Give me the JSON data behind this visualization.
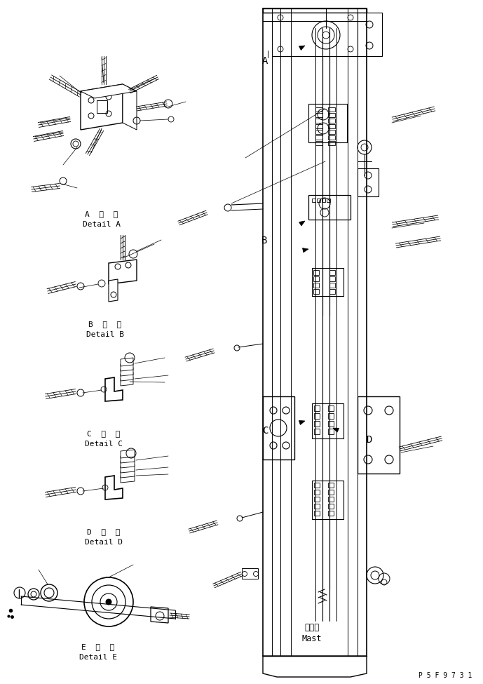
{
  "bg_color": "#ffffff",
  "line_color": "#000000",
  "fig_width": 6.89,
  "fig_height": 9.75,
  "dpi": 100,
  "part_number": "P 5 F 9 7 3 1",
  "labels": {
    "detail_a_jp": "A 詳細",
    "detail_a_en": "Detail A",
    "detail_b_jp": "B 詳細",
    "detail_b_en": "Detail B",
    "detail_c_jp": "C 詳細",
    "detail_c_en": "Detail C",
    "detail_d_jp": "D 詳細",
    "detail_d_en": "Detail D",
    "detail_e_jp": "E 詳細",
    "detail_e_en": "Detail E",
    "mast_jp": "マスト",
    "mast_en": "Mast"
  }
}
